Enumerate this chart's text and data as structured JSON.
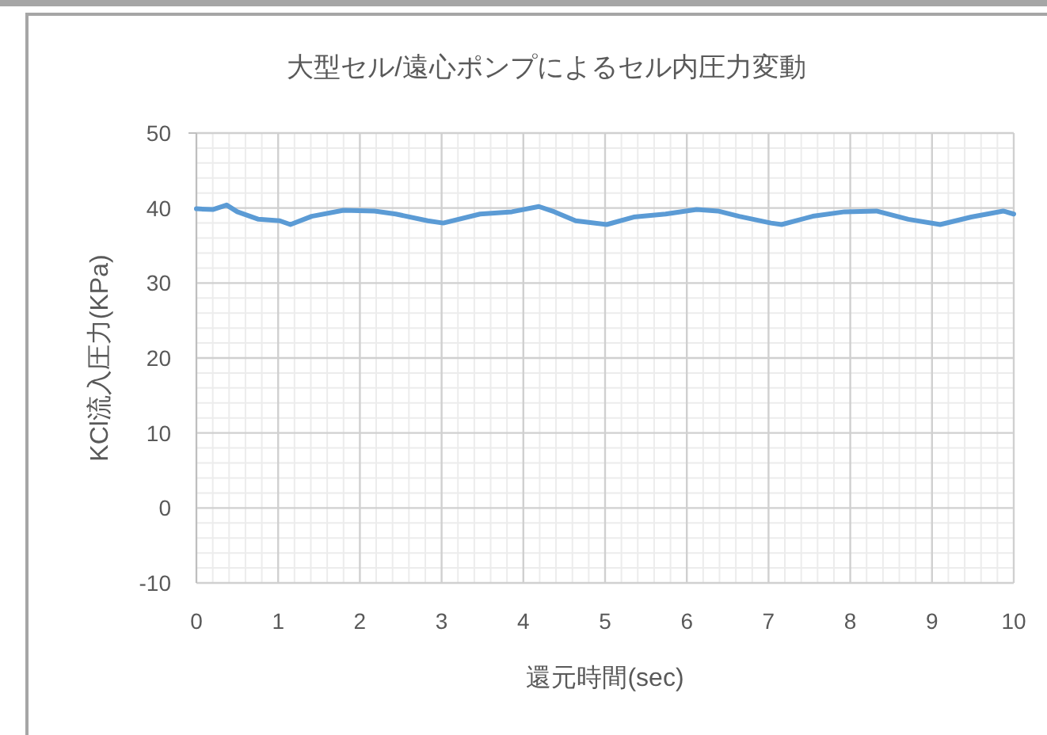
{
  "chart_data": {
    "type": "line",
    "title": "大型セル/遠心ポンプによるセル内圧力変動",
    "xlabel": "還元時間(sec)",
    "ylabel": "KCl流入圧力(KPa)",
    "xlim": [
      0,
      10
    ],
    "ylim": [
      -10,
      50
    ],
    "xticks": [
      0,
      1,
      2,
      3,
      4,
      5,
      6,
      7,
      8,
      9,
      10
    ],
    "yticks": [
      -10,
      0,
      10,
      20,
      30,
      40,
      50
    ],
    "grid": true,
    "marker": "none",
    "line_style": "solid",
    "series": [
      {
        "color": "#5b9bd5",
        "x": [
          0,
          0.2,
          0.37,
          0.5,
          0.76,
          1.02,
          1.15,
          1.41,
          1.8,
          2.18,
          2.44,
          2.83,
          3.02,
          3.47,
          3.86,
          4.19,
          4.38,
          4.64,
          5.02,
          5.35,
          5.74,
          6.12,
          6.38,
          6.64,
          7.03,
          7.16,
          7.54,
          7.93,
          8.32,
          8.71,
          9.1,
          9.48,
          9.87,
          10
        ],
        "values": [
          39.9,
          39.8,
          40.4,
          39.5,
          38.5,
          38.3,
          37.8,
          38.9,
          39.7,
          39.6,
          39.2,
          38.3,
          38.0,
          39.2,
          39.5,
          40.2,
          39.5,
          38.3,
          37.8,
          38.8,
          39.2,
          39.8,
          39.6,
          38.9,
          38.0,
          37.8,
          38.9,
          39.5,
          39.6,
          38.5,
          37.8,
          38.8,
          39.6,
          39.2
        ]
      }
    ]
  }
}
